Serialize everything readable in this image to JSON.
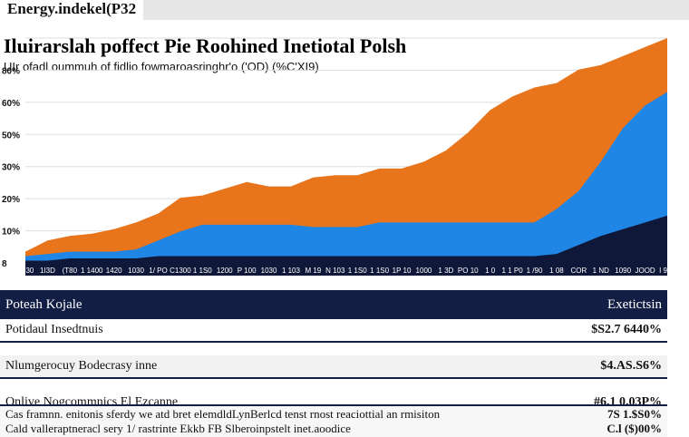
{
  "topbar": {
    "label": "Energy.indekel(P32"
  },
  "chart_data": {
    "type": "area",
    "title": "Iluirarslah poffect Pie Roohined Inetiotal Polsh",
    "subtitle": "UIr ofadl oummuh of fidlio fowmaroasringhr'o ('OD) (%C'XI9)",
    "xlabel": "",
    "ylabel": "",
    "ylim": [
      0,
      100
    ],
    "y_ticks": [
      "",
      "80%",
      "60%",
      "50%",
      "30%",
      "20%",
      "10%",
      "8"
    ],
    "x_ticks": [
      "1S30",
      "1I3D",
      "(T80",
      "1 1400",
      "1420",
      "1030",
      "1/ PO",
      "C1300",
      "1 1S0",
      "1200",
      "P 100",
      "1030",
      "1 103",
      "M 19",
      "N 103",
      "1 1S0",
      "1 1S0",
      "1P 10",
      "1000",
      "1 3D",
      "PO 10",
      "1 0",
      "1 1 P0",
      "1 /90",
      "1 08",
      "COR",
      "1 ND",
      "1090",
      "JOOD",
      "I 900"
    ],
    "x": [
      0,
      1,
      2,
      3,
      4,
      5,
      6,
      7,
      8,
      9,
      10,
      11,
      12,
      13,
      14,
      15,
      16,
      17,
      18,
      19,
      20,
      21,
      22,
      23,
      24,
      25,
      26,
      27,
      28,
      29
    ],
    "series": [
      {
        "values": [
          1,
          1,
          2,
          2,
          2,
          2,
          3,
          3,
          3,
          3,
          3,
          3,
          3,
          3,
          3,
          3,
          3,
          3,
          3,
          3,
          3,
          3,
          3,
          3,
          4,
          8,
          12,
          15,
          18,
          21
        ]
      },
      {
        "values": [
          3,
          4,
          5,
          5,
          5,
          6,
          10,
          14,
          17,
          17,
          17,
          17,
          17,
          16,
          16,
          16,
          18,
          18,
          18,
          18,
          18,
          18,
          18,
          18,
          24,
          32,
          45,
          60,
          70,
          76
        ]
      },
      {
        "values": [
          5,
          10,
          12,
          13,
          15,
          18,
          22,
          29,
          30,
          33,
          36,
          34,
          34,
          38,
          39,
          39,
          42,
          42,
          45,
          50,
          58,
          68,
          74,
          78,
          80,
          86,
          88,
          92,
          96,
          100
        ]
      }
    ],
    "colors": [
      "#10183a",
      "#1f86e6",
      "#e8741c"
    ],
    "grid": true
  },
  "table": {
    "header": {
      "left": "Poteah Kojale",
      "right": "Exetictsin"
    },
    "rows": [
      {
        "label": "Potidaul Insedtnuis",
        "value": "$S2.7 6440%"
      },
      {
        "label": "Nlumgerocuy Bodecrasy inne",
        "value": "$4.AS.S6%"
      },
      {
        "label": "Onlive Nogcommnics El Ezcanne",
        "value": "#6.1 0.03P%"
      }
    ]
  },
  "footnote": {
    "lines": [
      {
        "text": "Cas framnn. enitonis sferdy we atd bret elemdldLynBerlcd tenst rnost reaciottial an rmisiton",
        "value": "7S 1.$S0%"
      },
      {
        "text": "Cald valleraptneracl sery 1/ rastrinte Ekkb FB Slberoinpstelt inet.aoodice",
        "value": "C.l ($)00%"
      }
    ]
  }
}
